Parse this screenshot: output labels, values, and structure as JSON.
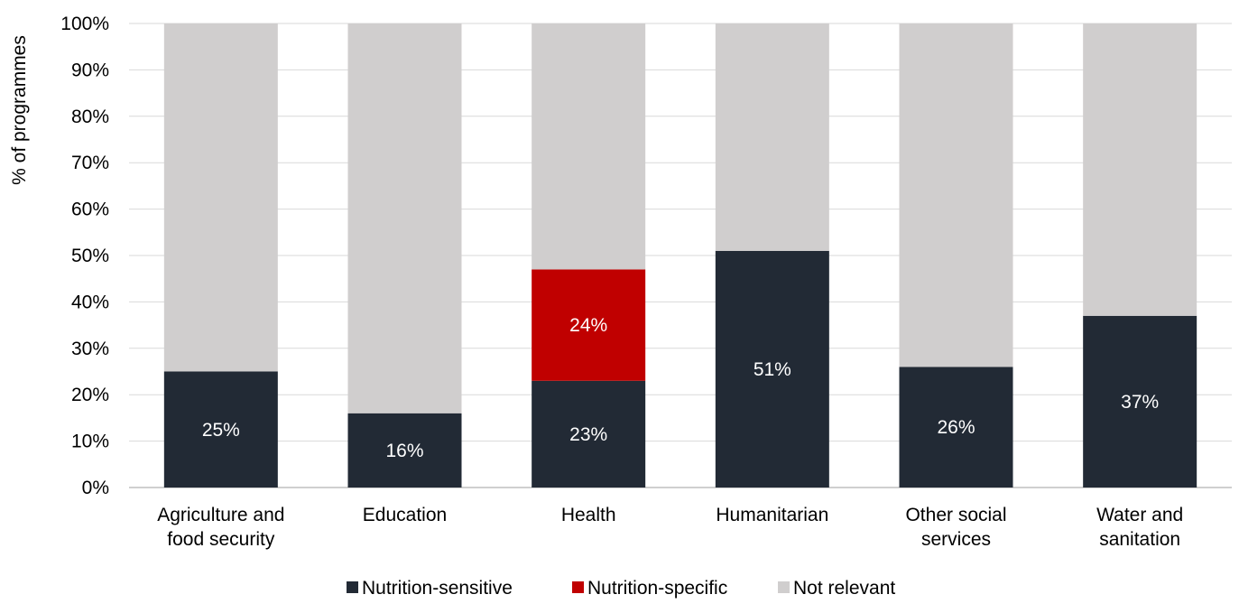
{
  "chart_data": {
    "type": "bar",
    "stacked": true,
    "ylabel": "% of programmes",
    "xlabel": "",
    "ylim": [
      0,
      100
    ],
    "y_ticks": [
      "0%",
      "10%",
      "20%",
      "30%",
      "40%",
      "50%",
      "60%",
      "70%",
      "80%",
      "90%",
      "100%"
    ],
    "grid": true,
    "legend_position": "bottom",
    "categories": [
      [
        "Agriculture and",
        "food security"
      ],
      [
        "Education"
      ],
      [
        "Health"
      ],
      [
        "Humanitarian"
      ],
      [
        "Other social",
        "services"
      ],
      [
        "Water and",
        "sanitation"
      ]
    ],
    "series": [
      {
        "name": "Nutrition-sensitive",
        "color": "#222a35",
        "values": [
          25,
          16,
          23,
          51,
          26,
          37
        ],
        "labels": [
          "25%",
          "16%",
          "23%",
          "51%",
          "26%",
          "37%"
        ]
      },
      {
        "name": "Nutrition-specific",
        "color": "#c00000",
        "values": [
          0,
          0,
          24,
          0,
          0,
          0
        ],
        "labels": [
          "",
          "",
          "24%",
          "",
          "",
          ""
        ]
      },
      {
        "name": "Not relevant",
        "color": "#d0cece",
        "values": [
          75,
          84,
          53,
          49,
          74,
          63
        ],
        "labels": [
          "",
          "",
          "",
          "",
          "",
          ""
        ]
      }
    ]
  }
}
